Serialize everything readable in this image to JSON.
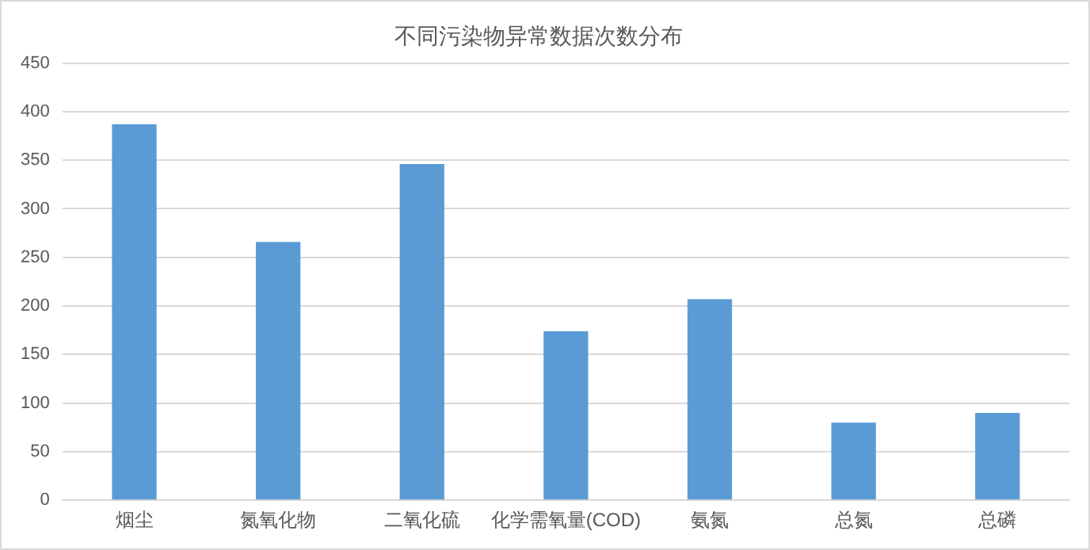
{
  "chart_data": {
    "type": "bar",
    "title": "不同污染物异常数据次数分布",
    "categories": [
      "烟尘",
      "氮氧化物",
      "二氧化硫",
      "化学需氧量(COD)",
      "氨氮",
      "总氮",
      "总磷"
    ],
    "values": [
      387,
      266,
      346,
      174,
      207,
      80,
      90
    ],
    "color": "#5b9bd5",
    "ylim": [
      0,
      450
    ],
    "yticks": [
      0,
      50,
      100,
      150,
      200,
      250,
      300,
      350,
      400,
      450
    ],
    "grid": "y",
    "legend": false
  }
}
